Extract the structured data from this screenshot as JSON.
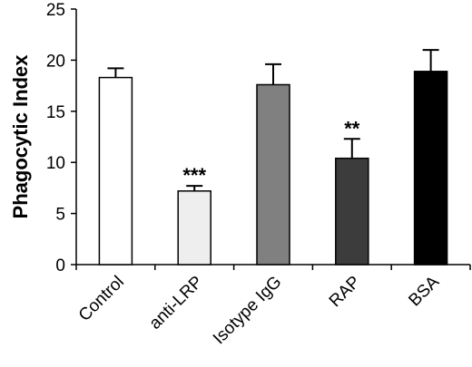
{
  "chart_data": {
    "type": "bar",
    "title": "",
    "xlabel": "",
    "ylabel": "Phagocytic Index",
    "ylim": [
      0,
      25
    ],
    "yticks": [
      "0",
      "5",
      "10",
      "15",
      "20",
      "25"
    ],
    "grid": false,
    "categories": [
      "Control",
      "anti-LRP",
      "Isotype IgG",
      "RAP",
      "BSA"
    ],
    "values": [
      18.3,
      7.2,
      17.6,
      10.4,
      18.9
    ],
    "errors": [
      0.9,
      0.5,
      2.0,
      1.9,
      2.1
    ],
    "annotations": [
      "",
      "***",
      "",
      "**",
      ""
    ],
    "colors": [
      "#ffffff",
      "#eeeeee",
      "#808080",
      "#3c3c3c",
      "#000000"
    ]
  }
}
